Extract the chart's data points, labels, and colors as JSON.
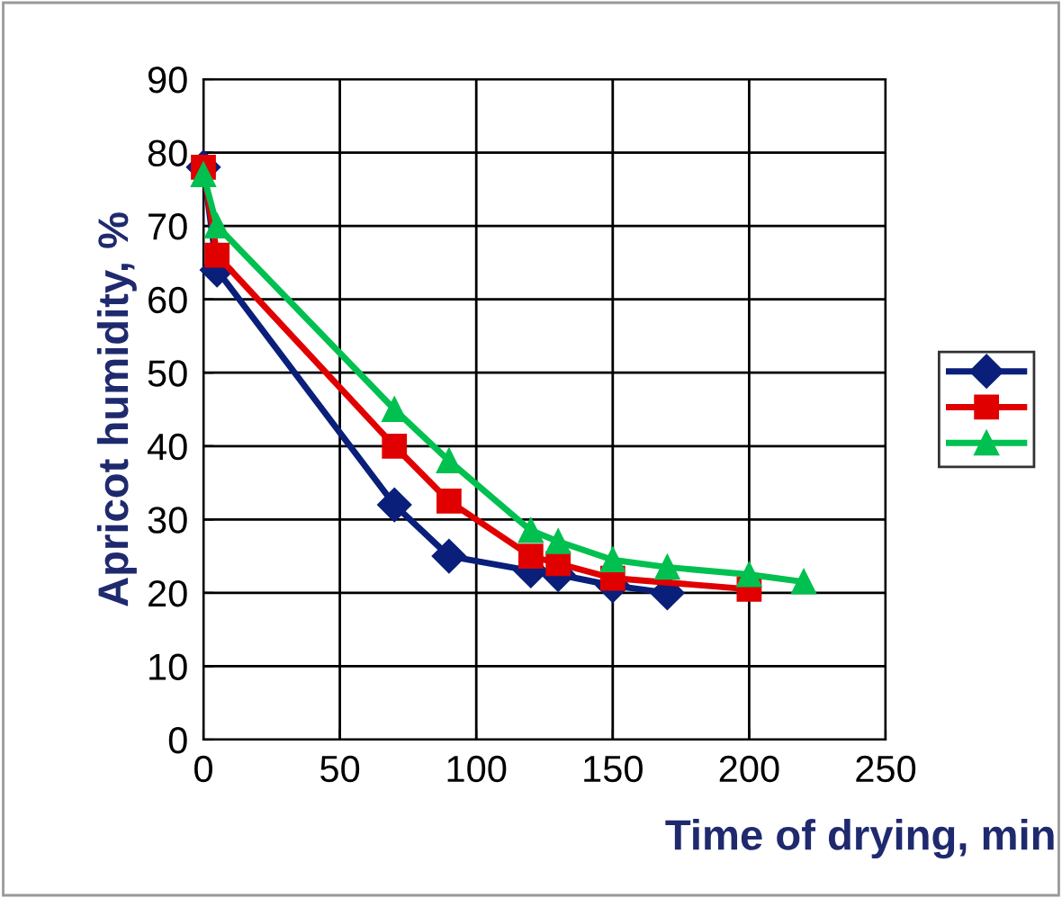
{
  "chart_data": {
    "type": "line",
    "xlabel": "Time of drying, min",
    "ylabel": "Apricot humidity, %",
    "series": [
      {
        "color": "#0a1f7a",
        "marker": "diamond",
        "x": [
          0,
          5,
          70,
          90,
          120,
          130,
          150,
          170
        ],
        "values": [
          78,
          64,
          32,
          25,
          23,
          22.5,
          21,
          20
        ]
      },
      {
        "color": "#e00000",
        "marker": "square",
        "x": [
          0,
          5,
          70,
          90,
          120,
          130,
          150,
          200
        ],
        "values": [
          78,
          66,
          40,
          32.5,
          25,
          24,
          22,
          20.5
        ]
      },
      {
        "color": "#00c050",
        "marker": "triangle",
        "x": [
          0,
          5,
          70,
          90,
          120,
          130,
          150,
          170,
          200,
          220
        ],
        "values": [
          77,
          70,
          45,
          38,
          28.5,
          27,
          24.5,
          23.5,
          22.5,
          21.5
        ]
      }
    ],
    "xlim": [
      0,
      250
    ],
    "xticks": [
      0,
      50,
      100,
      150,
      200,
      250
    ],
    "ylim": [
      0,
      90
    ],
    "yticks": [
      0,
      10,
      20,
      30,
      40,
      50,
      60,
      70,
      80,
      90
    ],
    "grid": true
  }
}
